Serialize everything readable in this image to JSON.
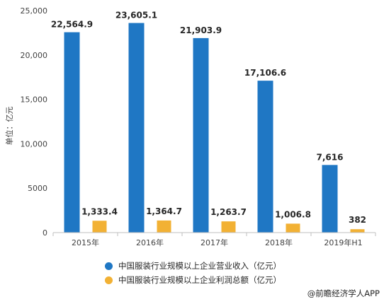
{
  "chart_data": {
    "type": "bar",
    "categories": [
      "2015年",
      "2016年",
      "2017年",
      "2018年",
      "2019年H1"
    ],
    "series": [
      {
        "name": "中国服装行业规模以上企业营业收入（亿元）",
        "values": [
          22564.9,
          23605.1,
          21903.9,
          17106.6,
          7616
        ],
        "labels": [
          "22,564.9",
          "23,605.1",
          "21,903.9",
          "17,106.6",
          "7,616"
        ],
        "color": "#1f77c4"
      },
      {
        "name": "中国服装行业规模以上企业利润总额（亿元）",
        "values": [
          1333.4,
          1364.7,
          1263.7,
          1006.8,
          382
        ],
        "labels": [
          "1,333.4",
          "1,364.7",
          "1,263.7",
          "1,006.8",
          "382"
        ],
        "color": "#f2b134"
      }
    ],
    "ylabel": "单位：亿元",
    "ylim": [
      0,
      25000
    ],
    "yticks": [
      0,
      5000,
      10000,
      15000,
      20000,
      25000
    ],
    "ytick_labels": [
      "0",
      "5000",
      "10,000",
      "15,000",
      "20,000",
      "25,000"
    ],
    "grid": false,
    "legend_position": "bottom"
  },
  "legend": {
    "revenue_label": "中国服装行业规模以上企业营业收入（亿元）",
    "profit_label": "中国服装行业规模以上企业利润总额（亿元）"
  },
  "source": "@前瞻经济学人APP"
}
